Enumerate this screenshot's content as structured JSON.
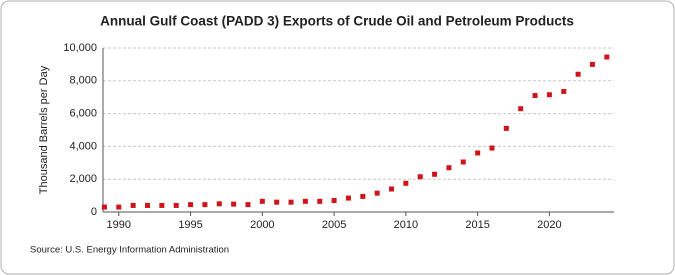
{
  "chart_data": {
    "type": "scatter",
    "title": "Annual Gulf Coast (PADD 3) Exports of Crude Oil and Petroleum Products",
    "y_label": "Thousand Barrels per Day",
    "source": "Source: U.S. Energy Information Administration",
    "color": "#d0141b",
    "x": [
      1989,
      1990,
      1991,
      1992,
      1993,
      1994,
      1995,
      1996,
      1997,
      1998,
      1999,
      2000,
      2001,
      2002,
      2003,
      2004,
      2005,
      2006,
      2007,
      2008,
      2009,
      2010,
      2011,
      2012,
      2013,
      2014,
      2015,
      2016,
      2017,
      2018,
      2019,
      2020,
      2021,
      2022,
      2023,
      2024
    ],
    "values": [
      300,
      300,
      400,
      400,
      400,
      400,
      450,
      450,
      500,
      480,
      450,
      650,
      600,
      600,
      650,
      650,
      700,
      850,
      950,
      1150,
      1400,
      1750,
      2150,
      2300,
      2700,
      3050,
      3600,
      3900,
      5100,
      6300,
      7100,
      7150,
      7350,
      8400,
      9000,
      9450
    ],
    "xlim": [
      1988.9,
      2024.5
    ],
    "xticks": [
      1990,
      1995,
      2000,
      2005,
      2010,
      2015,
      2020
    ],
    "ylim": [
      0,
      10000
    ],
    "yticks": [
      0,
      {
        "value": 2000,
        "label": "2,000"
      },
      {
        "value": 4000,
        "label": "4,000"
      },
      {
        "value": 6000,
        "label": "6,000"
      },
      {
        "value": 8000,
        "label": "8,000"
      },
      {
        "value": 10000,
        "label": "10,000"
      }
    ],
    "grid": true
  }
}
